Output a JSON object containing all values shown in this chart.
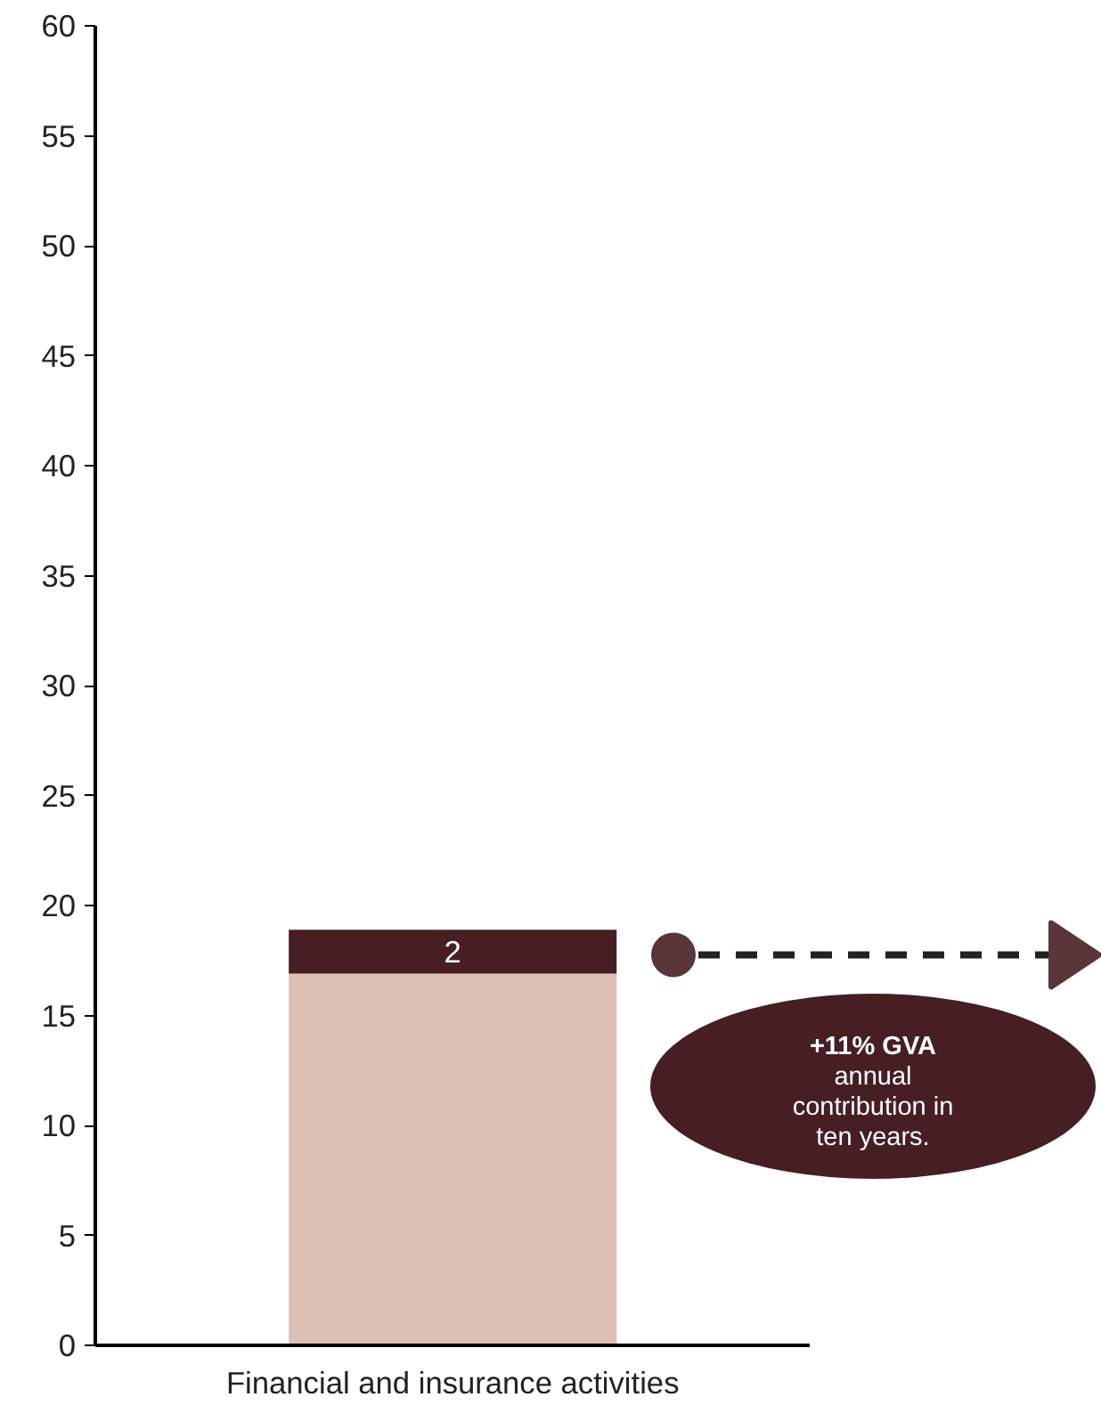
{
  "chart_data": {
    "type": "bar",
    "stacked": true,
    "categories": [
      "Financial and insurance activities"
    ],
    "series": [
      {
        "color": "#dcc0b3",
        "values": [
          16.9
        ],
        "value_labels": [
          null
        ]
      },
      {
        "color": "#461e23",
        "values": [
          2
        ],
        "value_labels": [
          "2"
        ]
      }
    ],
    "ylim": [
      0,
      60
    ],
    "yticks": [
      0,
      5,
      10,
      15,
      20,
      25,
      30,
      35,
      40,
      45,
      50,
      55,
      60
    ],
    "grid": false,
    "annotations": [
      "+11% GVA",
      "annual contribution in ten years."
    ]
  }
}
